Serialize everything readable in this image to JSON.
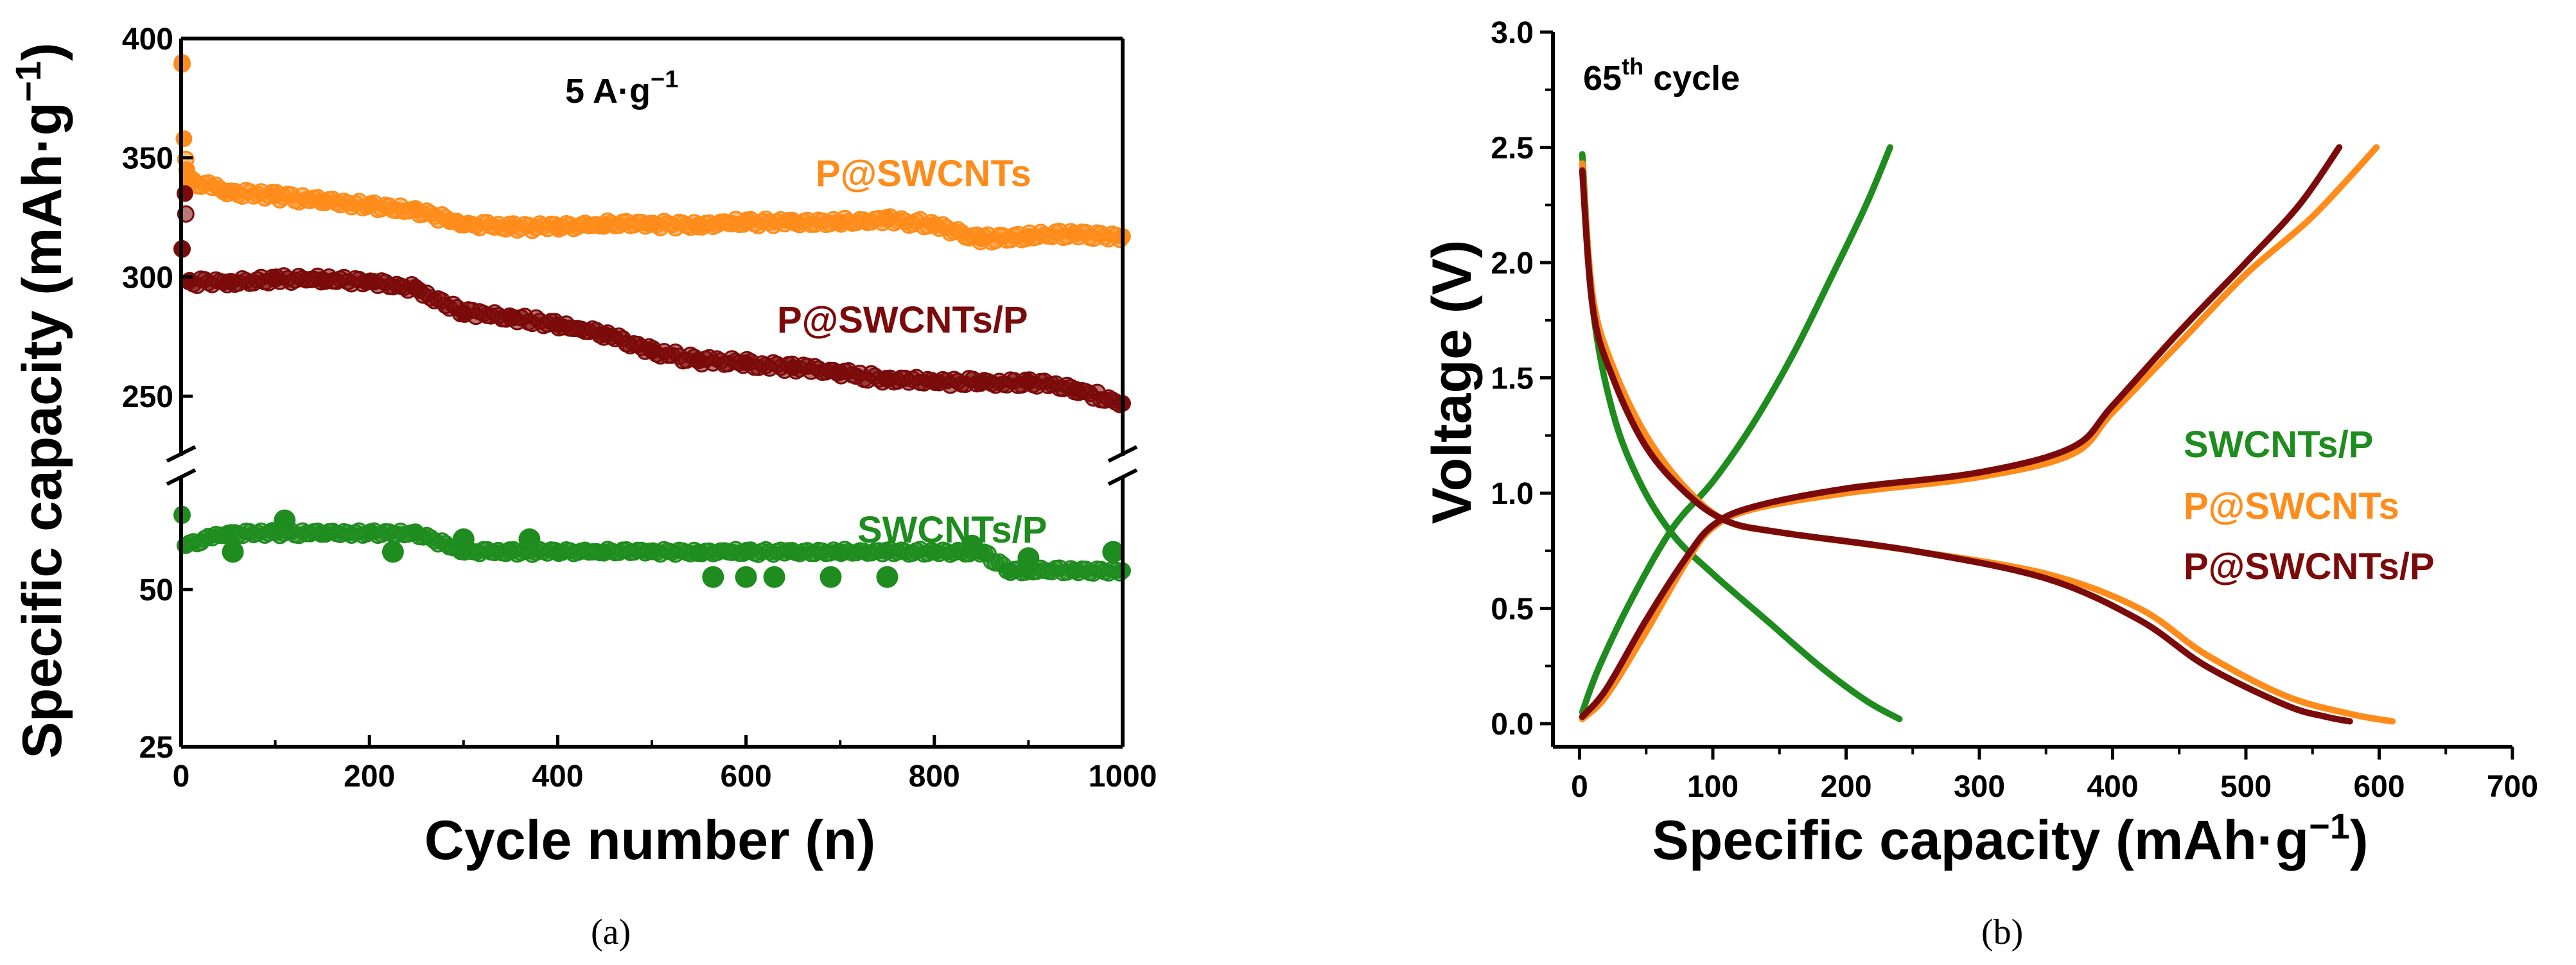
{
  "chart_data": [
    {
      "type": "scatter",
      "panel_caption": "(a)",
      "xlabel": "Cycle number (n)",
      "ylabel": "Specific capacity (mAh·g",
      "ylabel_sup": "−1",
      "ylabel_close": ")",
      "annotation": {
        "base": "5 A·g",
        "sup": "−1"
      },
      "xlim": [
        0,
        1000
      ],
      "x_ticks": [
        "0",
        "200",
        "400",
        "600",
        "800",
        "1000"
      ],
      "y_break": true,
      "upper_ylim": [
        225,
        400
      ],
      "upper_y_ticks": [
        "250",
        "300",
        "350",
        "400"
      ],
      "lower_ylim": [
        25,
        68
      ],
      "lower_y_ticks": [
        "25",
        "50"
      ],
      "series": [
        {
          "name": "P@SWCNTs",
          "color": "#ff8c1a",
          "axis": "upper",
          "points": [
            [
              1,
              390
            ],
            [
              3,
              358
            ],
            [
              6,
              345
            ],
            [
              10,
              340
            ],
            [
              50,
              336
            ],
            [
              100,
              334
            ],
            [
              150,
              332
            ],
            [
              200,
              330
            ],
            [
              250,
              328
            ],
            [
              300,
              322
            ],
            [
              350,
              321
            ],
            [
              400,
              321
            ],
            [
              450,
              322
            ],
            [
              500,
              322
            ],
            [
              550,
              322
            ],
            [
              600,
              323
            ],
            [
              650,
              323
            ],
            [
              700,
              323
            ],
            [
              750,
              324
            ],
            [
              800,
              322
            ],
            [
              850,
              316
            ],
            [
              900,
              317
            ],
            [
              950,
              318
            ],
            [
              1000,
              317
            ]
          ]
        },
        {
          "name": "P@SWCNTs/P",
          "color": "#7b0a0a",
          "axis": "upper",
          "points": [
            [
              1,
              312
            ],
            [
              4,
              335
            ],
            [
              8,
              298
            ],
            [
              50,
              298
            ],
            [
              100,
              299
            ],
            [
              150,
              299
            ],
            [
              200,
              298
            ],
            [
              250,
              295
            ],
            [
              300,
              285
            ],
            [
              350,
              283
            ],
            [
              400,
              280
            ],
            [
              450,
              276
            ],
            [
              500,
              269
            ],
            [
              550,
              265
            ],
            [
              600,
              264
            ],
            [
              650,
              262
            ],
            [
              700,
              260
            ],
            [
              750,
              257
            ],
            [
              800,
              256
            ],
            [
              850,
              256
            ],
            [
              900,
              256
            ],
            [
              950,
              253
            ],
            [
              1000,
              247
            ]
          ]
        },
        {
          "name": "SWCNTs/P",
          "color": "#1e8c1e",
          "axis": "lower",
          "points": [
            [
              1,
              62
            ],
            [
              4,
              57
            ],
            [
              50,
              59
            ],
            [
              100,
              59
            ],
            [
              150,
              59
            ],
            [
              200,
              59
            ],
            [
              250,
              59
            ],
            [
              300,
              56
            ],
            [
              350,
              56
            ],
            [
              400,
              56
            ],
            [
              450,
              56
            ],
            [
              500,
              56
            ],
            [
              550,
              56
            ],
            [
              600,
              56
            ],
            [
              650,
              56
            ],
            [
              700,
              56
            ],
            [
              750,
              56
            ],
            [
              800,
              56
            ],
            [
              850,
              56
            ],
            [
              880,
              53
            ],
            [
              900,
              53
            ],
            [
              950,
              53
            ],
            [
              1000,
              53
            ]
          ],
          "outliers": [
            [
              55,
              56
            ],
            [
              110,
              61
            ],
            [
              225,
              56
            ],
            [
              300,
              58
            ],
            [
              370,
              58
            ],
            [
              565,
              52
            ],
            [
              600,
              52
            ],
            [
              630,
              52
            ],
            [
              690,
              52
            ],
            [
              750,
              52
            ],
            [
              840,
              57
            ],
            [
              900,
              55
            ],
            [
              990,
              56
            ]
          ]
        }
      ]
    },
    {
      "type": "line",
      "panel_caption": "(b)",
      "title": {
        "prefix": "65",
        "sup": "th",
        "suffix": " cycle"
      },
      "xlabel": "Specific capacity (mAh·g",
      "xlabel_sup": "−1",
      "xlabel_close": ")",
      "ylabel": "Voltage (V)",
      "xlim": [
        -20,
        700
      ],
      "ylim": [
        -0.1,
        3.0
      ],
      "x_ticks": [
        "0",
        "100",
        "200",
        "300",
        "400",
        "500",
        "600",
        "700"
      ],
      "y_ticks": [
        "0.0",
        "0.5",
        "1.0",
        "1.5",
        "2.0",
        "2.5",
        "3.0"
      ],
      "legend_order": [
        "SWCNTs/P",
        "P@SWCNTs",
        "P@SWCNTs/P"
      ],
      "series": [
        {
          "name": "SWCNTs/P",
          "color": "#1e8c1e",
          "discharge": [
            [
              2,
              2.47
            ],
            [
              10,
              1.8
            ],
            [
              25,
              1.35
            ],
            [
              45,
              1.05
            ],
            [
              70,
              0.82
            ],
            [
              100,
              0.65
            ],
            [
              140,
              0.45
            ],
            [
              180,
              0.25
            ],
            [
              215,
              0.1
            ],
            [
              240,
              0.02
            ]
          ],
          "charge": [
            [
              2,
              0.05
            ],
            [
              15,
              0.25
            ],
            [
              40,
              0.55
            ],
            [
              70,
              0.85
            ],
            [
              100,
              1.05
            ],
            [
              130,
              1.3
            ],
            [
              160,
              1.6
            ],
            [
              190,
              1.95
            ],
            [
              215,
              2.25
            ],
            [
              233,
              2.5
            ]
          ]
        },
        {
          "name": "P@SWCNTs",
          "color": "#ff8c1a",
          "discharge": [
            [
              2,
              2.43
            ],
            [
              10,
              1.85
            ],
            [
              25,
              1.55
            ],
            [
              50,
              1.25
            ],
            [
              80,
              1.02
            ],
            [
              110,
              0.88
            ],
            [
              150,
              0.83
            ],
            [
              250,
              0.75
            ],
            [
              350,
              0.65
            ],
            [
              420,
              0.5
            ],
            [
              470,
              0.3
            ],
            [
              530,
              0.12
            ],
            [
              580,
              0.04
            ],
            [
              610,
              0.01
            ]
          ],
          "charge": [
            [
              2,
              0.02
            ],
            [
              20,
              0.12
            ],
            [
              50,
              0.4
            ],
            [
              80,
              0.7
            ],
            [
              100,
              0.85
            ],
            [
              130,
              0.93
            ],
            [
              200,
              1.0
            ],
            [
              300,
              1.07
            ],
            [
              370,
              1.17
            ],
            [
              400,
              1.35
            ],
            [
              450,
              1.65
            ],
            [
              500,
              1.95
            ],
            [
              550,
              2.2
            ],
            [
              598,
              2.5
            ]
          ]
        },
        {
          "name": "P@SWCNTs/P",
          "color": "#7b0a0a",
          "discharge": [
            [
              2,
              2.4
            ],
            [
              10,
              1.8
            ],
            [
              25,
              1.5
            ],
            [
              50,
              1.2
            ],
            [
              80,
              1.0
            ],
            [
              110,
              0.88
            ],
            [
              150,
              0.83
            ],
            [
              250,
              0.75
            ],
            [
              350,
              0.63
            ],
            [
              420,
              0.45
            ],
            [
              470,
              0.25
            ],
            [
              530,
              0.08
            ],
            [
              560,
              0.03
            ],
            [
              578,
              0.01
            ]
          ],
          "charge": [
            [
              2,
              0.03
            ],
            [
              20,
              0.15
            ],
            [
              50,
              0.45
            ],
            [
              80,
              0.72
            ],
            [
              100,
              0.86
            ],
            [
              130,
              0.94
            ],
            [
              200,
              1.02
            ],
            [
              300,
              1.09
            ],
            [
              370,
              1.2
            ],
            [
              400,
              1.38
            ],
            [
              450,
              1.7
            ],
            [
              500,
              2.0
            ],
            [
              540,
              2.25
            ],
            [
              570,
              2.5
            ]
          ]
        }
      ]
    }
  ]
}
